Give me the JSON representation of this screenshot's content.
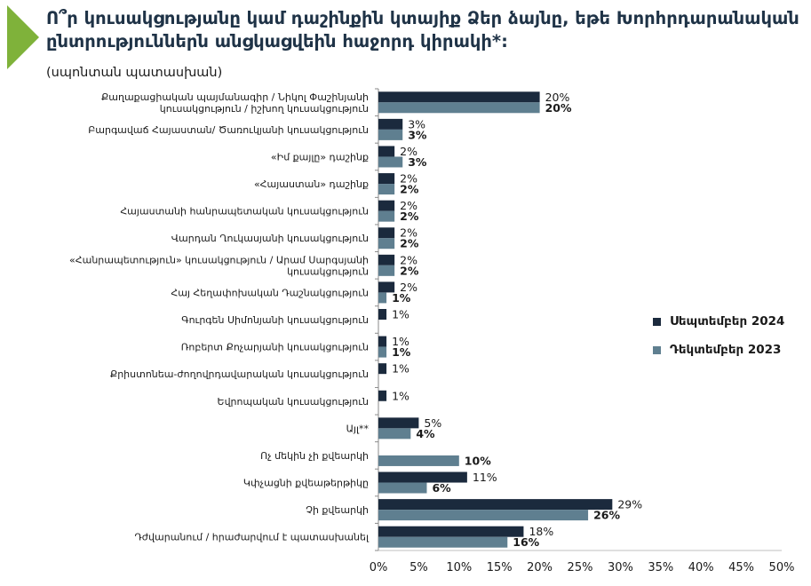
{
  "title": "Ո՞ր կուսակցությանը կամ դաշինքին կտայիք Ձեր ձայնը, եթե Խորհրդարանական ընտրություններն անցկացվեին հաջորդ կիրակի*:",
  "subtitle": "(սպոնտան պատասխան)",
  "colors": {
    "accent_arrow": "#7fb23a",
    "series_2024": "#1b2a3d",
    "series_2023": "#5f7f90"
  },
  "legend": [
    {
      "label": "Սեպտեմբեր 2024",
      "color": "#1b2a3d"
    },
    {
      "label": "Դեկտեմբեր 2023",
      "color": "#5f7f90"
    }
  ],
  "chart_data": {
    "type": "bar",
    "orientation": "horizontal",
    "categories": [
      [
        "Քաղաքացիական պայմանագիր / Նիկոլ Փաշինյանի",
        "կուսակցություն / իշխող կուսակցություն"
      ],
      [
        "Բարգավաճ Հայաստան/ Ծառուկյանի կուսակցություն"
      ],
      [
        "«Իմ քայլը» դաշինք"
      ],
      [
        "«Հայաստան» դաշինք"
      ],
      [
        "Հայաստանի հանրապետական կուսակցություն"
      ],
      [
        "Վարդան Ղուկասյանի կուսակցություն"
      ],
      [
        "«Հանրապետություն» կուսակցություն / Արամ Սարգսյանի",
        "կուսակցություն"
      ],
      [
        "Հայ Հեղափոխական Դաշնակցություն"
      ],
      [
        "Գուրգեն Սիմոնյանի կուսակցություն"
      ],
      [
        "Ռոբերտ Քոչարյանի կուսակցություն"
      ],
      [
        "Քրիստոնեա-ժողովրդավարական կուսակցություն"
      ],
      [
        "Եվրոպական կուսակցություն"
      ],
      [
        "Այլ**"
      ],
      [
        "Ոչ մեկին չի քվեարկի"
      ],
      [
        "Կփչացնի քվեաթերթիկը"
      ],
      [
        "Չի քվեարկի"
      ],
      [
        "Դժվարանում / հրաժարվում է պատասխանել"
      ]
    ],
    "series": [
      {
        "name": "Սեպտեմբեր 2024",
        "values": [
          20,
          3,
          2,
          2,
          2,
          2,
          2,
          2,
          1,
          1,
          1,
          1,
          5,
          null,
          11,
          29,
          18
        ],
        "labels": [
          "20%",
          "3%",
          "2%",
          "2%",
          "2%",
          "2%",
          "2%",
          "2%",
          "1%",
          "1%",
          "1%",
          "1%",
          "5%",
          "",
          "11%",
          "29%",
          "18%"
        ]
      },
      {
        "name": "Դեկտեմբեր 2023",
        "values": [
          20,
          3,
          3,
          2,
          2,
          2,
          2,
          1,
          null,
          1,
          null,
          null,
          4,
          10,
          6,
          26,
          16
        ],
        "labels": [
          "20%",
          "3%",
          "3%",
          "2%",
          "2%",
          "2%",
          "2%",
          "1%",
          "",
          "1%",
          "",
          "",
          "4%",
          "10%",
          "6%",
          "26%",
          "16%"
        ]
      }
    ],
    "xlim": [
      0,
      50
    ],
    "xticks": [
      "0%",
      "5%",
      "10%",
      "15%",
      "20%",
      "25%",
      "30%",
      "35%",
      "40%",
      "45%",
      "50%"
    ],
    "legend_position": "right"
  }
}
